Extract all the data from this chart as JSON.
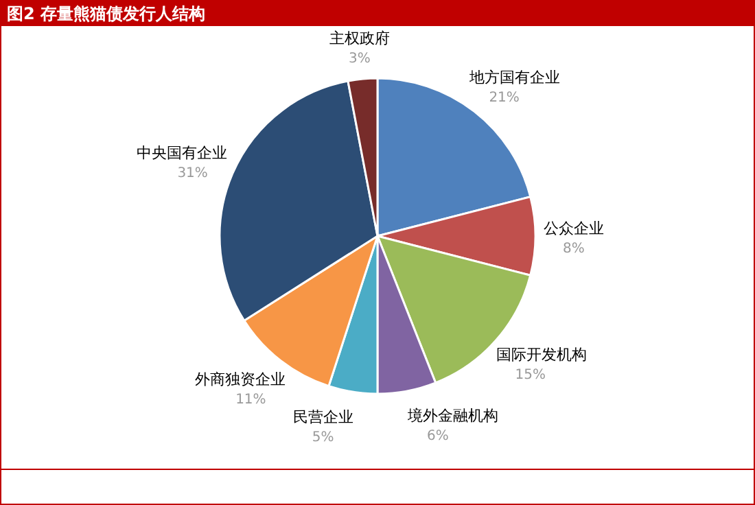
{
  "chart_data": {
    "type": "pie",
    "title": "图2 存量熊猫债发行人结构",
    "categories": [
      "地方国有企业",
      "公众企业",
      "国际开发机构",
      "境外金融机构",
      "民营企业",
      "外商独资企业",
      "中央国有企业",
      "主权政府"
    ],
    "values": [
      21,
      8,
      15,
      6,
      5,
      11,
      31,
      3
    ],
    "value_labels": [
      "21%",
      "8%",
      "15%",
      "6%",
      "5%",
      "11%",
      "31%",
      "3%"
    ],
    "colors": [
      "#4f81bd",
      "#c0504d",
      "#9bbb59",
      "#8064a2",
      "#4bacc6",
      "#f79646",
      "#2c4d75",
      "#772c2a"
    ],
    "legend": false
  }
}
